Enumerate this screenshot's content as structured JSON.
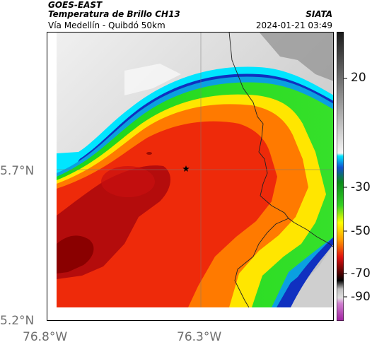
{
  "header": {
    "line1": "GOES-EAST",
    "line2": "Temperatura de Brillo CH13",
    "line3": "Vía Medellín - Quibdó 50km",
    "right_org": "SIATA",
    "right_time": "2024-01-21 03:49"
  },
  "axes": {
    "y_ticks": [
      "5.7°N",
      "5.2°N"
    ],
    "x_ticks": [
      "76.8°W",
      "76.3°W"
    ]
  },
  "colorbar": {
    "ticks": [
      "20",
      "-30",
      "-50",
      "-70",
      "-90"
    ]
  },
  "colors": {
    "outside_cold": "#d9d9d9",
    "boundary_cyan": "#00e5ff",
    "boundary_blue": "#1030c0",
    "green": "#22cc22",
    "yellow": "#ffe600",
    "orange": "#ff7a00",
    "red": "#ee2a0a",
    "dark_red": "#a00000"
  },
  "marker": "star"
}
